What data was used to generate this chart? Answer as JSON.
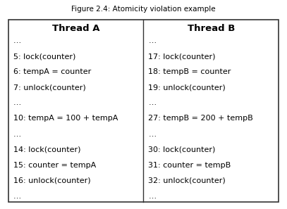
{
  "title": "Figure 2.4: Atomicity violation example",
  "thread_a_header": "Thread A",
  "thread_b_header": "Thread B",
  "thread_a_lines": [
    "…",
    "5: lock(counter)",
    "6: tempA = counter",
    "7: unlock(counter)",
    "…",
    "10: tempA = 100 + tempA",
    "…",
    "14: lock(counter)",
    "15: counter = tempA",
    "16: unlock(counter)",
    "…"
  ],
  "thread_b_lines": [
    "…",
    "17: lock(counter)",
    "18: tempB = counter",
    "19: unlock(counter)",
    "…",
    "27: tempB = 200 + tempB",
    "…",
    "30: lock(counter)",
    "31: counter = tempB",
    "32: unlock(counter)",
    "…"
  ],
  "bg_color": "#ffffff",
  "text_color": "#000000",
  "box_edge_color": "#333333",
  "divider_color": "#333333",
  "header_fontsize": 9.5,
  "body_fontsize": 8.0,
  "title_fontsize": 7.5,
  "fig_width": 4.07,
  "fig_height": 2.97,
  "dpi": 100
}
